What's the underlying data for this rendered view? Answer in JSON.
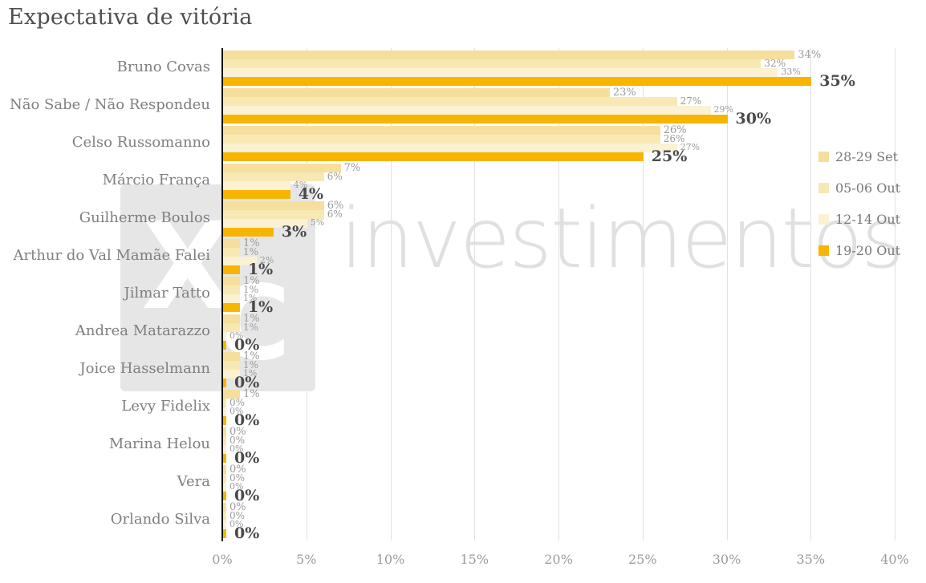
{
  "title": "Expectativa de vitória",
  "watermark": {
    "logo_letters_x": "X",
    "logo_letters_c": "C",
    "text": "investimentos"
  },
  "chart_data": {
    "type": "bar",
    "orientation": "horizontal",
    "title": "Expectativa de vitória",
    "categories": [
      "Bruno Covas",
      "Não Sabe / Não Respondeu",
      "Celso Russomanno",
      "Márcio França",
      "Guilherme Boulos",
      "Arthur do Val Mamãe Falei",
      "Jilmar Tatto",
      "Andrea Matarazzo",
      "Joice Hasselmann",
      "Levy Fidelix",
      "Marina Helou",
      "Vera",
      "Orlando Silva"
    ],
    "series": [
      {
        "name": "28-29 Set",
        "color": "#F6DF9C",
        "emphasis": false,
        "values": [
          34,
          23,
          26,
          7,
          6,
          1,
          1,
          1,
          1,
          1,
          0,
          0,
          0
        ]
      },
      {
        "name": "05-06 Out",
        "color": "#F8E8B4",
        "emphasis": false,
        "values": [
          32,
          27,
          26,
          6,
          6,
          1,
          1,
          1,
          1,
          0,
          0,
          0,
          0
        ]
      },
      {
        "name": "12-14 Out",
        "color": "#FBF1D3",
        "emphasis": false,
        "values": [
          33,
          29,
          27,
          4,
          5,
          2,
          1,
          0,
          1,
          0,
          0,
          0,
          0
        ]
      },
      {
        "name": "19-20 Out",
        "color": "#F7B400",
        "emphasis": true,
        "values": [
          35,
          30,
          25,
          4,
          3,
          1,
          1,
          0,
          0,
          0,
          0,
          0,
          0
        ]
      }
    ],
    "value_suffix": "%",
    "xlabel": "",
    "ylabel": "",
    "xlim": [
      0,
      40
    ],
    "xtick_step": 5,
    "xticks": [
      "0%",
      "5%",
      "10%",
      "15%",
      "20%",
      "25%",
      "30%",
      "35%",
      "40%"
    ],
    "grid": "vertical",
    "legend_position": "right"
  }
}
